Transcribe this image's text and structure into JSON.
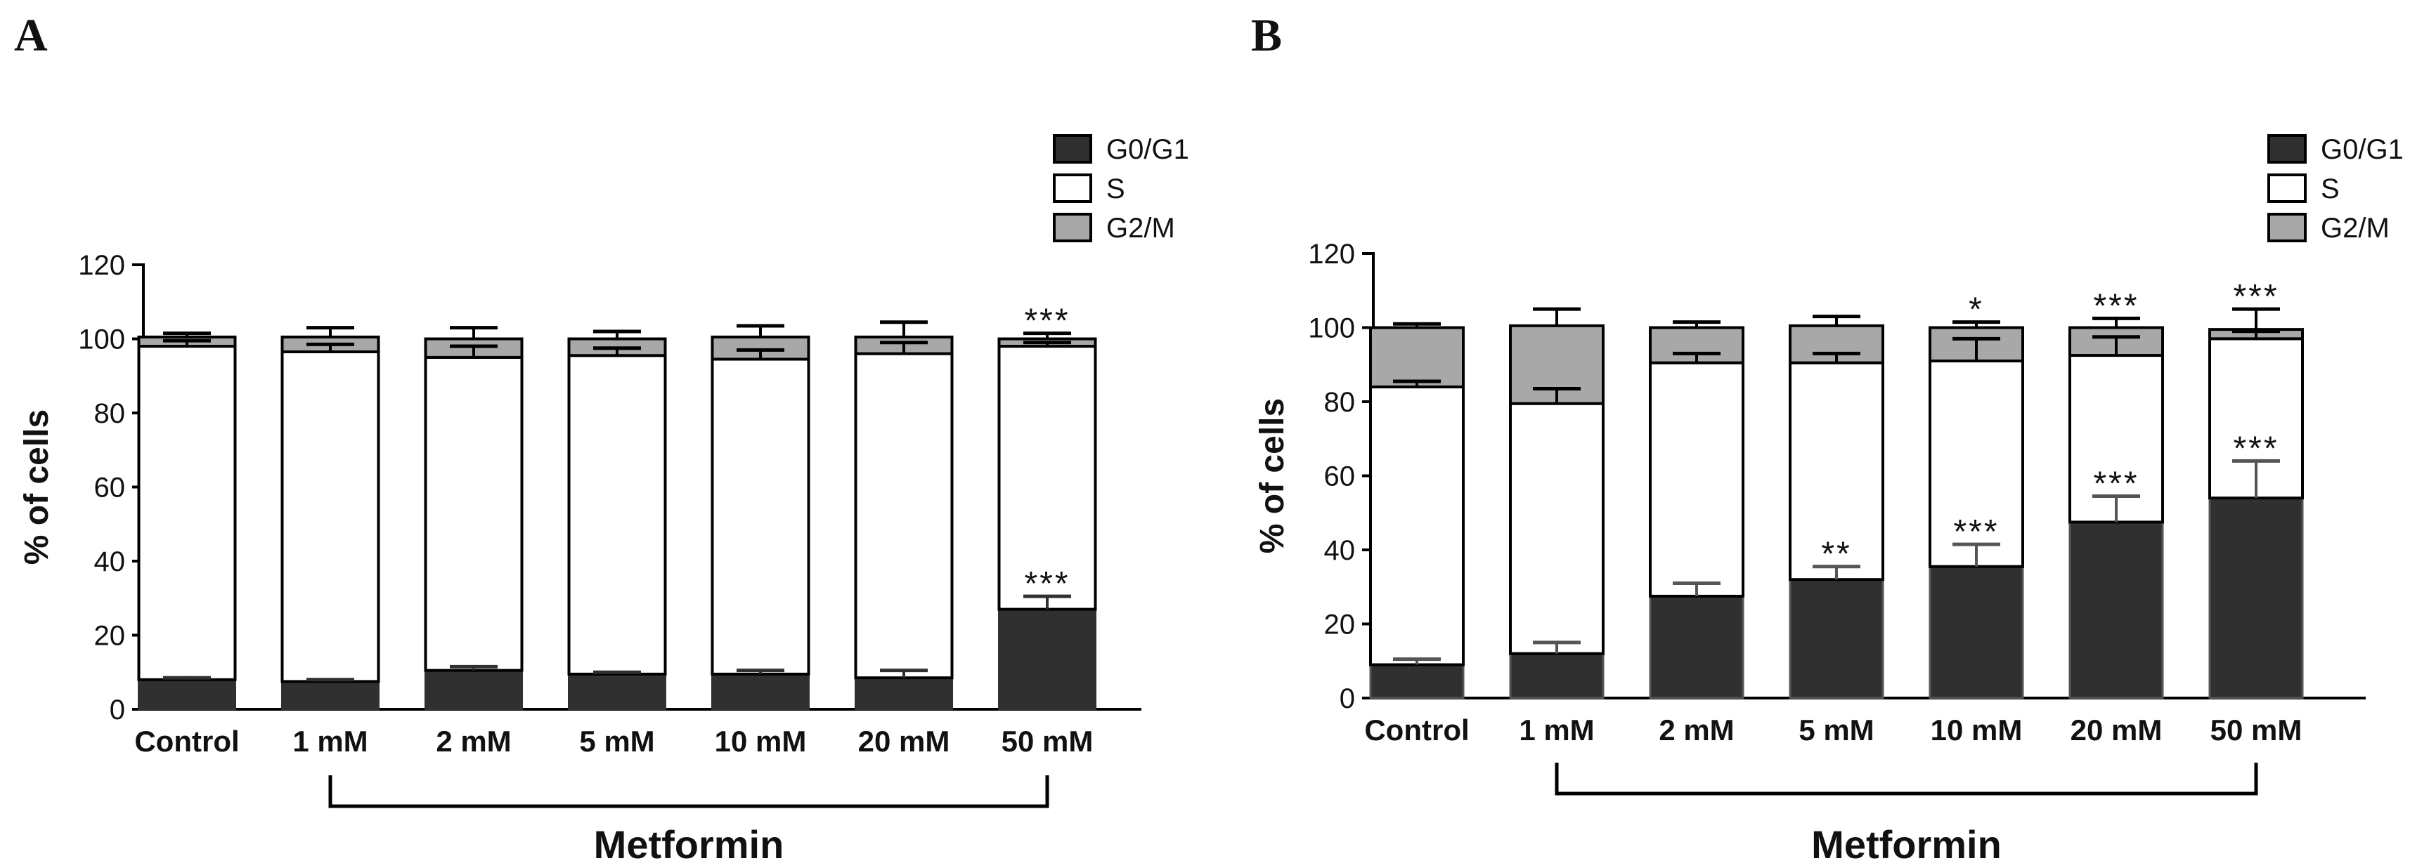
{
  "figure": {
    "domain": "Chart"
  },
  "chart_data": [
    {
      "panel": "A",
      "type": "bar",
      "stacked": true,
      "categories": [
        "Control",
        "1 mM",
        "2 mM",
        "5 mM",
        "10 mM",
        "20 mM",
        "50 mM"
      ],
      "series": [
        {
          "name": "G0/G1",
          "color": "#303030",
          "border": "#303030",
          "values": [
            8,
            7.5,
            10.5,
            9.5,
            9.5,
            8.5,
            27
          ],
          "error": [
            0.5,
            0.5,
            1,
            0.5,
            1,
            2,
            3.5
          ]
        },
        {
          "name": "S",
          "color": "#ffffff",
          "border": "#000000",
          "values": [
            90,
            89,
            84.5,
            86,
            85,
            87.5,
            71
          ],
          "error": [
            1.5,
            2,
            3,
            2,
            2.5,
            3,
            1
          ]
        },
        {
          "name": "G2/M",
          "color": "#a8a8a8",
          "border": "#000000",
          "values": [
            2.5,
            4,
            5,
            4.5,
            6,
            4.5,
            2
          ],
          "error": [
            1,
            2.5,
            3,
            2,
            3,
            4,
            1.5
          ]
        }
      ],
      "ylabel": "% of cells",
      "xlabel": "",
      "ylim": [
        0,
        120
      ],
      "yticks": [
        0,
        20,
        40,
        60,
        80,
        100,
        120
      ],
      "legend": "top-right",
      "group_label": "Metformin",
      "group_categories": [
        "1 mM",
        "50 mM"
      ],
      "annotations": [
        {
          "category": "50 mM",
          "level": "top",
          "text": "***"
        },
        {
          "category": "50 mM",
          "level": "G0/G1",
          "text": "***"
        }
      ]
    },
    {
      "panel": "B",
      "type": "bar",
      "stacked": true,
      "categories": [
        "Control",
        "1 mM",
        "2 mM",
        "5 mM",
        "10 mM",
        "20 mM",
        "50 mM"
      ],
      "series": [
        {
          "name": "G0/G1",
          "color": "#303030",
          "border": "#555555",
          "values": [
            9,
            12,
            27.5,
            32,
            35.5,
            47.5,
            54
          ],
          "error": [
            1.5,
            3,
            3.5,
            3.5,
            6,
            7,
            10
          ]
        },
        {
          "name": "S",
          "color": "#ffffff",
          "border": "#000000",
          "values": [
            75,
            67.5,
            63,
            58.5,
            55.5,
            45,
            43
          ],
          "error": [
            1.5,
            4,
            2.5,
            2.5,
            6,
            5,
            2
          ]
        },
        {
          "name": "G2/M",
          "color": "#a8a8a8",
          "border": "#000000",
          "values": [
            16,
            21,
            9.5,
            10,
            9,
            7.5,
            2.5
          ],
          "error": [
            1,
            4.5,
            1.5,
            2.5,
            1.5,
            2.5,
            5.5
          ]
        }
      ],
      "ylabel": "% of cells",
      "xlabel": "",
      "ylim": [
        0,
        120
      ],
      "yticks": [
        0,
        20,
        40,
        60,
        80,
        100,
        120
      ],
      "legend": "top-right",
      "group_label": "Metformin",
      "group_categories": [
        "1 mM",
        "50 mM"
      ],
      "annotations": [
        {
          "category": "5 mM",
          "level": "G0/G1",
          "text": "**"
        },
        {
          "category": "10 mM",
          "level": "G0/G1",
          "text": "***"
        },
        {
          "category": "20 mM",
          "level": "G0/G1",
          "text": "***"
        },
        {
          "category": "50 mM",
          "level": "G0/G1",
          "text": "***"
        },
        {
          "category": "10 mM",
          "level": "top",
          "text": "*"
        },
        {
          "category": "20 mM",
          "level": "top",
          "text": "***"
        },
        {
          "category": "50 mM",
          "level": "top",
          "text": "***"
        }
      ]
    }
  ]
}
